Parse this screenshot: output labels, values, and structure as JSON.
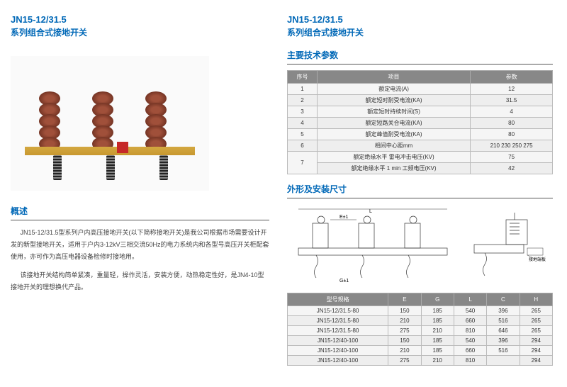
{
  "left": {
    "title_main": "JN15-12/31.5",
    "title_sub": "系列组合式接地开关",
    "overview_title": "概述",
    "desc_p1": "JN15-12/31.5型系列户内高压接地开关(以下简称接地开关)是我公司根据市场需要设计开发的新型接地开关，适用于户内3-12kV三相交流50Hz的电力系统内和各型号高压开关柜配套使用，亦可作为高压电器设备检修时接地用。",
    "desc_p2": "该接地开关结构简单紧凑，重量轻，操作灵活，安装方便，动热稳定性好，是JN4-10型接地开关的理想换代产品。"
  },
  "right": {
    "title_main": "JN15-12/31.5",
    "title_sub": "系列组合式接地开关",
    "spec_title": "主要技术参数",
    "spec_headers": [
      "序号",
      "项目",
      "参数"
    ],
    "spec_rows": [
      {
        "no": "1",
        "item": "额定电流(A)",
        "val": "12"
      },
      {
        "no": "2",
        "item": "额定短时耐受电流(KA)",
        "val": "31.5"
      },
      {
        "no": "3",
        "item": "额定短时持续时间(S)",
        "val": "4"
      },
      {
        "no": "4",
        "item": "额定短路关合电流(KA)",
        "val": "80"
      },
      {
        "no": "5",
        "item": "额定峰值耐受电流(KA)",
        "val": "80"
      },
      {
        "no": "6",
        "item": "相间中心距mm",
        "val": "210 230 250 275"
      }
    ],
    "spec_row7_no": "7",
    "spec_row7_label": "额定绝缘水平",
    "spec_row7_a_item": "雷电冲击电压(KV)",
    "spec_row7_a_val": "75",
    "spec_row7_b_item": "1 min 工频电压(KV)",
    "spec_row7_b_val": "42",
    "dim_title": "外形及安装尺寸",
    "dim_label_e": "E±1",
    "dim_label_l": "L",
    "dim_label_g": "G±1",
    "dim_label_ground": "接地端板",
    "dim_headers": [
      "型号规格",
      "E",
      "G",
      "L",
      "C",
      "H"
    ],
    "dim_rows": [
      {
        "m": "JN15-12/31.5-80",
        "e": "150",
        "g": "185",
        "l": "540",
        "c": "396",
        "h": "265"
      },
      {
        "m": "JN15-12/31.5-80",
        "e": "210",
        "g": "185",
        "l": "660",
        "c": "516",
        "h": "265"
      },
      {
        "m": "JN15-12/31.5-80",
        "e": "275",
        "g": "210",
        "l": "810",
        "c": "646",
        "h": "265"
      },
      {
        "m": "JN15-12/40-100",
        "e": "150",
        "g": "185",
        "l": "540",
        "c": "396",
        "h": "294"
      },
      {
        "m": "JN15-12/40-100",
        "e": "210",
        "g": "185",
        "l": "660",
        "c": "516",
        "h": "294"
      },
      {
        "m": "JN15-12/40-100",
        "e": "275",
        "g": "210",
        "l": "810",
        "c": "",
        "h": "294"
      }
    ]
  }
}
